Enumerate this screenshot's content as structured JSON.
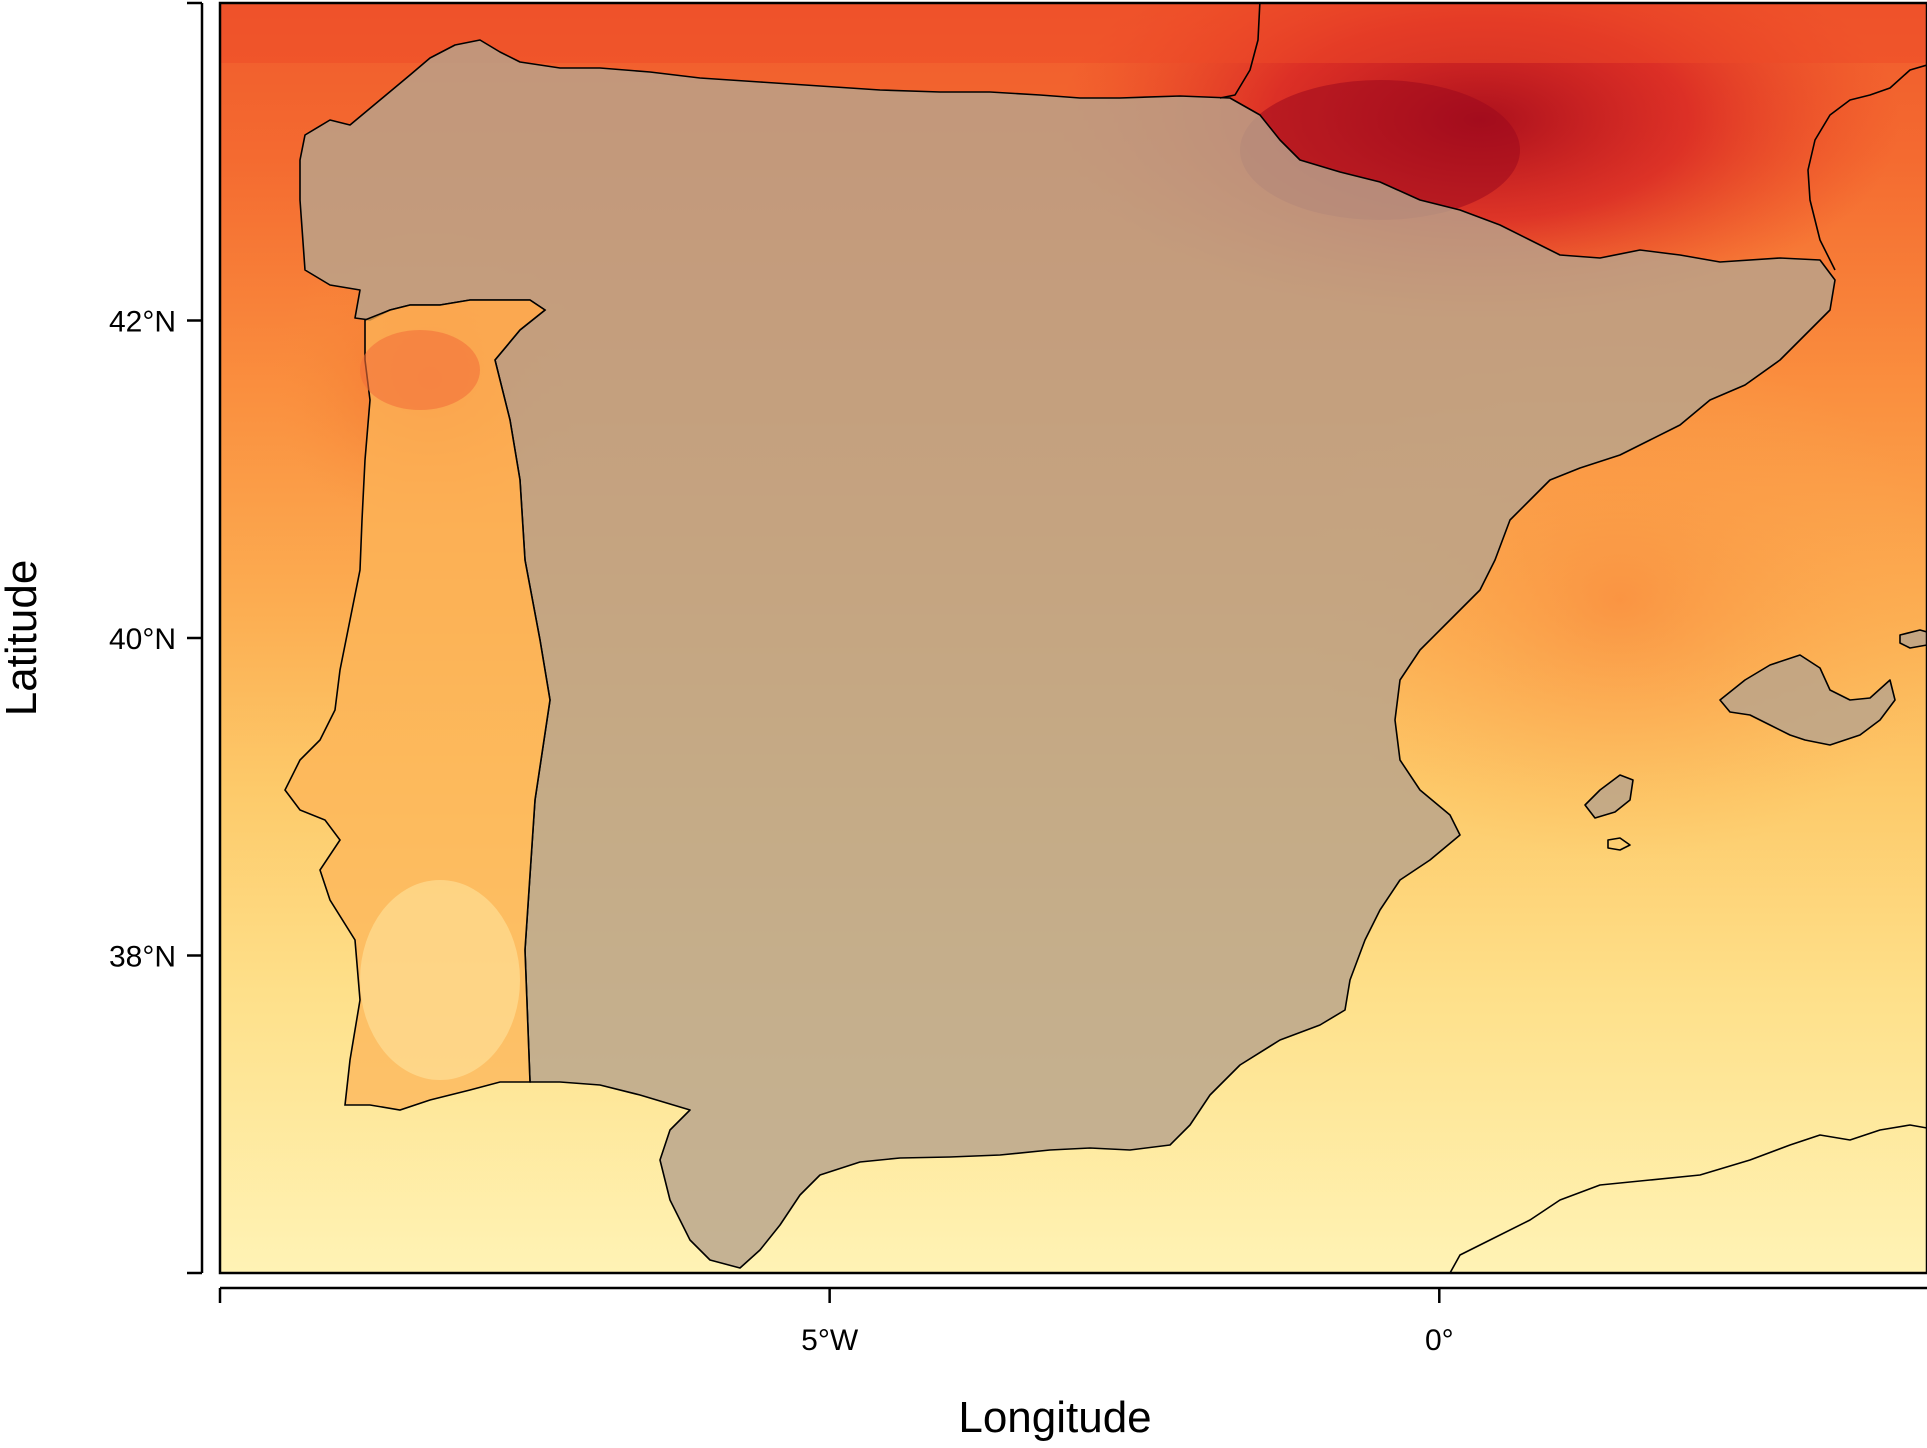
{
  "map": {
    "type": "raster-map",
    "region": "Iberian Peninsula",
    "xlabel": "Longitude",
    "ylabel": "Latitude",
    "x_ticks": [
      {
        "value": -10,
        "label": ""
      },
      {
        "value": -5,
        "label": "5°W"
      },
      {
        "value": 0,
        "label": "0°"
      }
    ],
    "y_ticks": [
      {
        "value": 36,
        "label": ""
      },
      {
        "value": 38,
        "label": "38°N"
      },
      {
        "value": 40,
        "label": "40°N"
      },
      {
        "value": 42,
        "label": "42°N"
      },
      {
        "value": 44,
        "label": ""
      }
    ],
    "xlim": [
      -10,
      4
    ],
    "ylim": [
      36,
      44
    ],
    "palette": [
      "#fff5b8",
      "#fee38c",
      "#fdc866",
      "#fca74a",
      "#f9853a",
      "#f05a2c",
      "#e0301e",
      "#c01420"
    ],
    "land_color": "#b8a48c",
    "coastline_color": "#000000"
  }
}
